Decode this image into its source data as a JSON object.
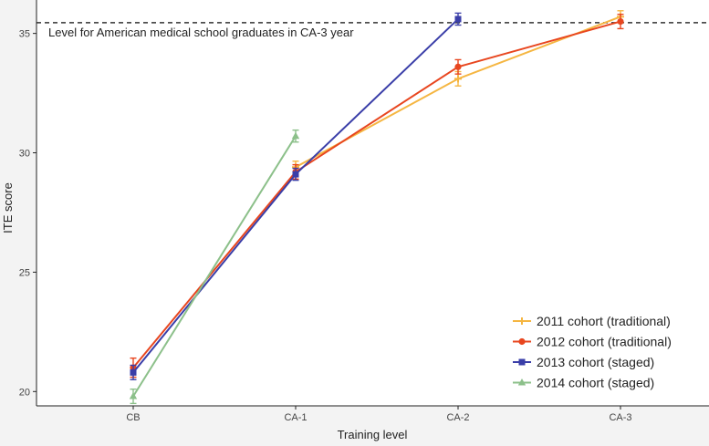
{
  "chart_data": {
    "type": "line",
    "title": "",
    "xlabel": "Training level",
    "ylabel": "ITE score",
    "categories": [
      "CB",
      "CA-1",
      "CA-2",
      "CA-3"
    ],
    "y_ticks": [
      20,
      25,
      30,
      35
    ],
    "ylim": [
      19.4,
      36.4
    ],
    "grid": false,
    "legend_position": "bottom-right",
    "reference_line": {
      "value": 35.45,
      "style": "dashed",
      "label": "Level for American medical school graduates in CA-3 year"
    },
    "series": [
      {
        "name": "2011 cohort (traditional)",
        "color": "#f5b642",
        "marker": "plus",
        "points": [
          {
            "category": "CA-1",
            "value": 29.4,
            "err": 0.25
          },
          {
            "category": "CA-2",
            "value": 33.1,
            "err": 0.3
          },
          {
            "category": "CA-3",
            "value": 35.7,
            "err": 0.25
          }
        ]
      },
      {
        "name": "2012 cohort (traditional)",
        "color": "#e8461f",
        "marker": "circle",
        "points": [
          {
            "category": "CB",
            "value": 21.0,
            "err": 0.4
          },
          {
            "category": "CA-1",
            "value": 29.2,
            "err": 0.3
          },
          {
            "category": "CA-2",
            "value": 33.6,
            "err": 0.3
          },
          {
            "category": "CA-3",
            "value": 35.5,
            "err": 0.3
          }
        ]
      },
      {
        "name": "2013 cohort (staged)",
        "color": "#3a3ea8",
        "marker": "square",
        "points": [
          {
            "category": "CB",
            "value": 20.8,
            "err": 0.3
          },
          {
            "category": "CA-1",
            "value": 29.1,
            "err": 0.25
          },
          {
            "category": "CA-2",
            "value": 35.6,
            "err": 0.25
          }
        ]
      },
      {
        "name": "2014 cohort (staged)",
        "color": "#8cc08a",
        "marker": "triangle",
        "points": [
          {
            "category": "CB",
            "value": 19.8,
            "err": 0.3
          },
          {
            "category": "CA-1",
            "value": 30.7,
            "err": 0.25
          }
        ]
      }
    ]
  }
}
